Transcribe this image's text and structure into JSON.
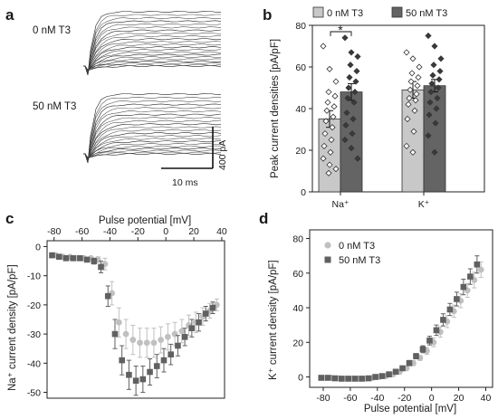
{
  "panels": {
    "a": {
      "letter": "a",
      "conditions": [
        "0 nM T3",
        "50 nM T3"
      ],
      "scale_current": "400 pA",
      "scale_time": "10 ms",
      "trace_count": 22
    },
    "b": {
      "letter": "b",
      "significance": "*"
    },
    "c": {
      "letter": "c"
    },
    "d": {
      "letter": "d"
    }
  },
  "colors": {
    "control": "#c8c8c8",
    "treated": "#646464",
    "control_marker": "#c0c0c0",
    "treated_marker": "#606060",
    "axis": "#222222"
  },
  "chart_data": [
    {
      "id": "b",
      "type": "bar",
      "ylabel": "Peak current densities [pA/pF]",
      "ylim": [
        0,
        80
      ],
      "yticks": [
        0,
        20,
        40,
        60,
        80
      ],
      "categories": [
        "Na⁺",
        "K⁺"
      ],
      "legend": [
        "0 nM T3",
        "50 nM T3"
      ],
      "legend_position": "top",
      "series": [
        {
          "name": "0 nM T3",
          "values": [
            35,
            49
          ],
          "sem": [
            4,
            4
          ]
        },
        {
          "name": "50 nM T3",
          "values": [
            48,
            51
          ],
          "sem": [
            4,
            3
          ]
        }
      ],
      "points": [
        [
          [
            70,
            59,
            53,
            48,
            46,
            43,
            41,
            39,
            36,
            34,
            31,
            28,
            25,
            22,
            19,
            16,
            13,
            11,
            9
          ],
          [
            74,
            67,
            65,
            61,
            58,
            55,
            53,
            50,
            48,
            45,
            43,
            38,
            35,
            32,
            28,
            25,
            21,
            16
          ]
        ],
        [
          [
            67,
            64,
            60,
            57,
            55,
            53,
            51,
            49,
            47,
            45,
            44,
            42,
            39,
            35,
            29,
            22,
            19
          ],
          [
            75,
            70,
            64,
            61,
            58,
            56,
            54,
            52,
            50,
            48,
            45,
            43,
            40,
            37,
            33,
            27,
            19
          ]
        ]
      ]
    },
    {
      "id": "c",
      "type": "scatter",
      "xlabel": "Pulse potential [mV]",
      "ylabel": "Na⁺ current density [pA/pF]",
      "xlim": [
        -85,
        42
      ],
      "ylim": [
        -52,
        2
      ],
      "xticks": [
        -80,
        -60,
        -40,
        -20,
        0,
        20,
        40
      ],
      "yticks": [
        0,
        -10,
        -20,
        -30,
        -40,
        -50
      ],
      "x": [
        -80,
        -75,
        -70,
        -65,
        -60,
        -55,
        -50,
        -45,
        -40,
        -35,
        -30,
        -25,
        -20,
        -15,
        -10,
        -5,
        0,
        5,
        10,
        15,
        20,
        25,
        30,
        35
      ],
      "series": [
        {
          "name": "0 nM T3",
          "values": [
            -3,
            -3.5,
            -3.5,
            -4,
            -4,
            -4,
            -4.5,
            -6,
            -16,
            -26,
            -30,
            -32,
            -33,
            -33,
            -33,
            -32,
            -31,
            -30,
            -29,
            -27,
            -26,
            -24,
            -22,
            -20
          ],
          "err": [
            0.5,
            0.5,
            0.5,
            0.5,
            0.5,
            0.5,
            1,
            2,
            4,
            5,
            5,
            5,
            5,
            5,
            5,
            4.5,
            4.5,
            4,
            4,
            3.5,
            3.5,
            3,
            2.5,
            2
          ]
        },
        {
          "name": "50 nM T3",
          "values": [
            -3,
            -3.5,
            -4,
            -4,
            -4,
            -4.5,
            -5,
            -7,
            -17,
            -30,
            -39,
            -44,
            -46,
            -45.5,
            -43,
            -41,
            -39,
            -37,
            -34,
            -31,
            -28,
            -26,
            -23,
            -21
          ],
          "err": [
            0.5,
            0.5,
            0.5,
            0.5,
            0.5,
            0.5,
            1,
            2,
            3.5,
            5,
            5,
            5,
            5,
            4.5,
            4.5,
            4,
            4,
            3.5,
            3.5,
            3,
            3,
            3,
            2.5,
            2
          ]
        }
      ]
    },
    {
      "id": "d",
      "type": "scatter",
      "xlabel": "Pulse potential [mV]",
      "ylabel": "K⁺ current density [pA/pF]",
      "xlim": [
        -90,
        45
      ],
      "ylim": [
        -6,
        85
      ],
      "xticks": [
        -80,
        -60,
        -40,
        -20,
        0,
        20,
        40
      ],
      "yticks": [
        0,
        20,
        40,
        60,
        80
      ],
      "legend": [
        "0 nM T3",
        "50 nM T3"
      ],
      "legend_position": "top-left",
      "x": [
        -80,
        -75,
        -70,
        -65,
        -60,
        -55,
        -50,
        -45,
        -40,
        -35,
        -30,
        -25,
        -20,
        -15,
        -10,
        -5,
        0,
        5,
        10,
        15,
        20,
        25,
        30,
        35
      ],
      "series": [
        {
          "name": "0 nM T3",
          "values": [
            -0.5,
            -0.5,
            -0.8,
            -1,
            -1,
            -1,
            -1,
            -0.5,
            0,
            0.5,
            1.5,
            3,
            5,
            8,
            11,
            15,
            20,
            26,
            32,
            38,
            44,
            50,
            56,
            62
          ],
          "err": [
            0.5,
            0.5,
            0.5,
            0.5,
            0.5,
            0.5,
            0.5,
            0.5,
            0.5,
            0.5,
            0.5,
            0.8,
            1,
            1.5,
            1.5,
            2,
            2.5,
            3,
            3.5,
            3.5,
            4,
            4,
            4.5,
            4.5
          ]
        },
        {
          "name": "50 nM T3",
          "values": [
            -0.5,
            -0.5,
            -0.8,
            -1,
            -1,
            -1,
            -1,
            -0.8,
            0,
            0.5,
            1.5,
            3,
            5,
            8,
            12,
            16,
            21,
            27,
            33,
            39,
            45,
            52,
            58,
            65
          ],
          "err": [
            0.5,
            0.5,
            0.5,
            0.5,
            0.5,
            0.5,
            0.5,
            0.5,
            0.5,
            0.5,
            0.5,
            0.8,
            1,
            1.5,
            1.5,
            2,
            2.5,
            3,
            3.5,
            3.5,
            4,
            4.5,
            4.5,
            5
          ]
        }
      ]
    }
  ]
}
